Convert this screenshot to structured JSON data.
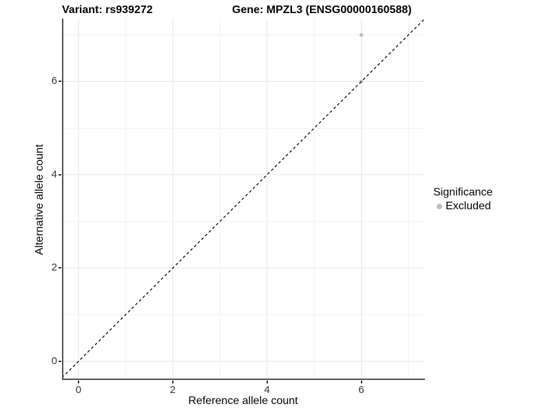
{
  "titles": {
    "variant": "Variant: rs939272",
    "gene": "Gene: MPZL3 (ENSG00000160588)"
  },
  "chart_data": {
    "type": "scatter",
    "title": "Variant: rs939272   Gene: MPZL3 (ENSG00000160588)",
    "xlabel": "Reference allele count",
    "ylabel": "Alternative allele count",
    "xlim": [
      -0.35,
      7.35
    ],
    "ylim": [
      -0.4,
      7.35
    ],
    "x_ticks": [
      0,
      2,
      4,
      6
    ],
    "y_ticks": [
      0,
      2,
      4,
      6
    ],
    "x_minor_gridlines": [
      1,
      3,
      5,
      7
    ],
    "y_minor_gridlines": [
      1,
      3,
      5,
      7
    ],
    "grid": "on",
    "series": [
      {
        "name": "Excluded",
        "color": "#bdbdbd",
        "x": [
          6,
          6
        ],
        "y": [
          6,
          7
        ]
      }
    ],
    "reference_line": {
      "kind": "identity",
      "style": "dashed",
      "color": "#000000"
    },
    "legend": {
      "position": "right",
      "title": "Significance",
      "items": [
        {
          "label": "Excluded",
          "color": "#bdbdbd"
        }
      ]
    },
    "style_colors": {
      "major_grid": "#e4e4e4",
      "minor_grid": "#f0f0f0",
      "axis_line": "#4d4d4d",
      "tick_mark": "#333333",
      "tick_label": "#333333",
      "point": "#bdbdbd"
    }
  }
}
